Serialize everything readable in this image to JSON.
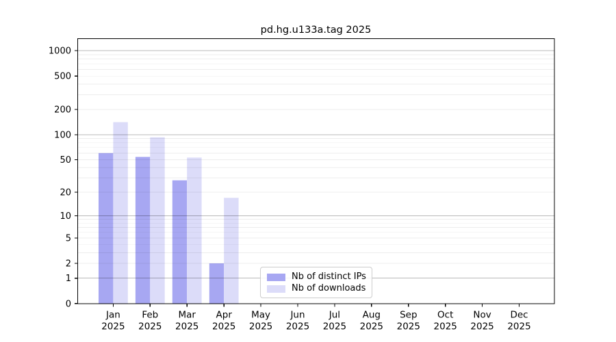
{
  "chart_data": {
    "type": "bar",
    "title": "pd.hg.u133a.tag 2025",
    "categories": [
      "Jan",
      "Feb",
      "Mar",
      "Apr",
      "May",
      "Jun",
      "Jul",
      "Aug",
      "Sep",
      "Oct",
      "Nov",
      "Dec"
    ],
    "x_tick_year": "2025",
    "series": [
      {
        "name": "Nb of distinct IPs",
        "color": "#a7a7f2",
        "values": [
          60,
          54,
          28,
          2,
          null,
          null,
          null,
          null,
          null,
          null,
          null,
          null
        ]
      },
      {
        "name": "Nb of downloads",
        "color": "#dcdcf9",
        "values": [
          141,
          93,
          53,
          17,
          null,
          null,
          null,
          null,
          null,
          null,
          null,
          null
        ]
      }
    ],
    "y_ticks": [
      0,
      1,
      2,
      5,
      10,
      20,
      50,
      100,
      200,
      500,
      1000
    ],
    "y_scale": "log10(1+v)",
    "ylim": [
      0,
      1300
    ],
    "grid": "horizontal, minor lines per decade step, major lines at 1/10/100/1000",
    "legend_position": "lower center",
    "colors": {
      "major_grid": "rgba(0,0,0,0.28)",
      "minor_grid": "rgba(0,0,0,0.07)",
      "axis": "#000000",
      "text": "#000000",
      "background": "#ffffff"
    }
  }
}
